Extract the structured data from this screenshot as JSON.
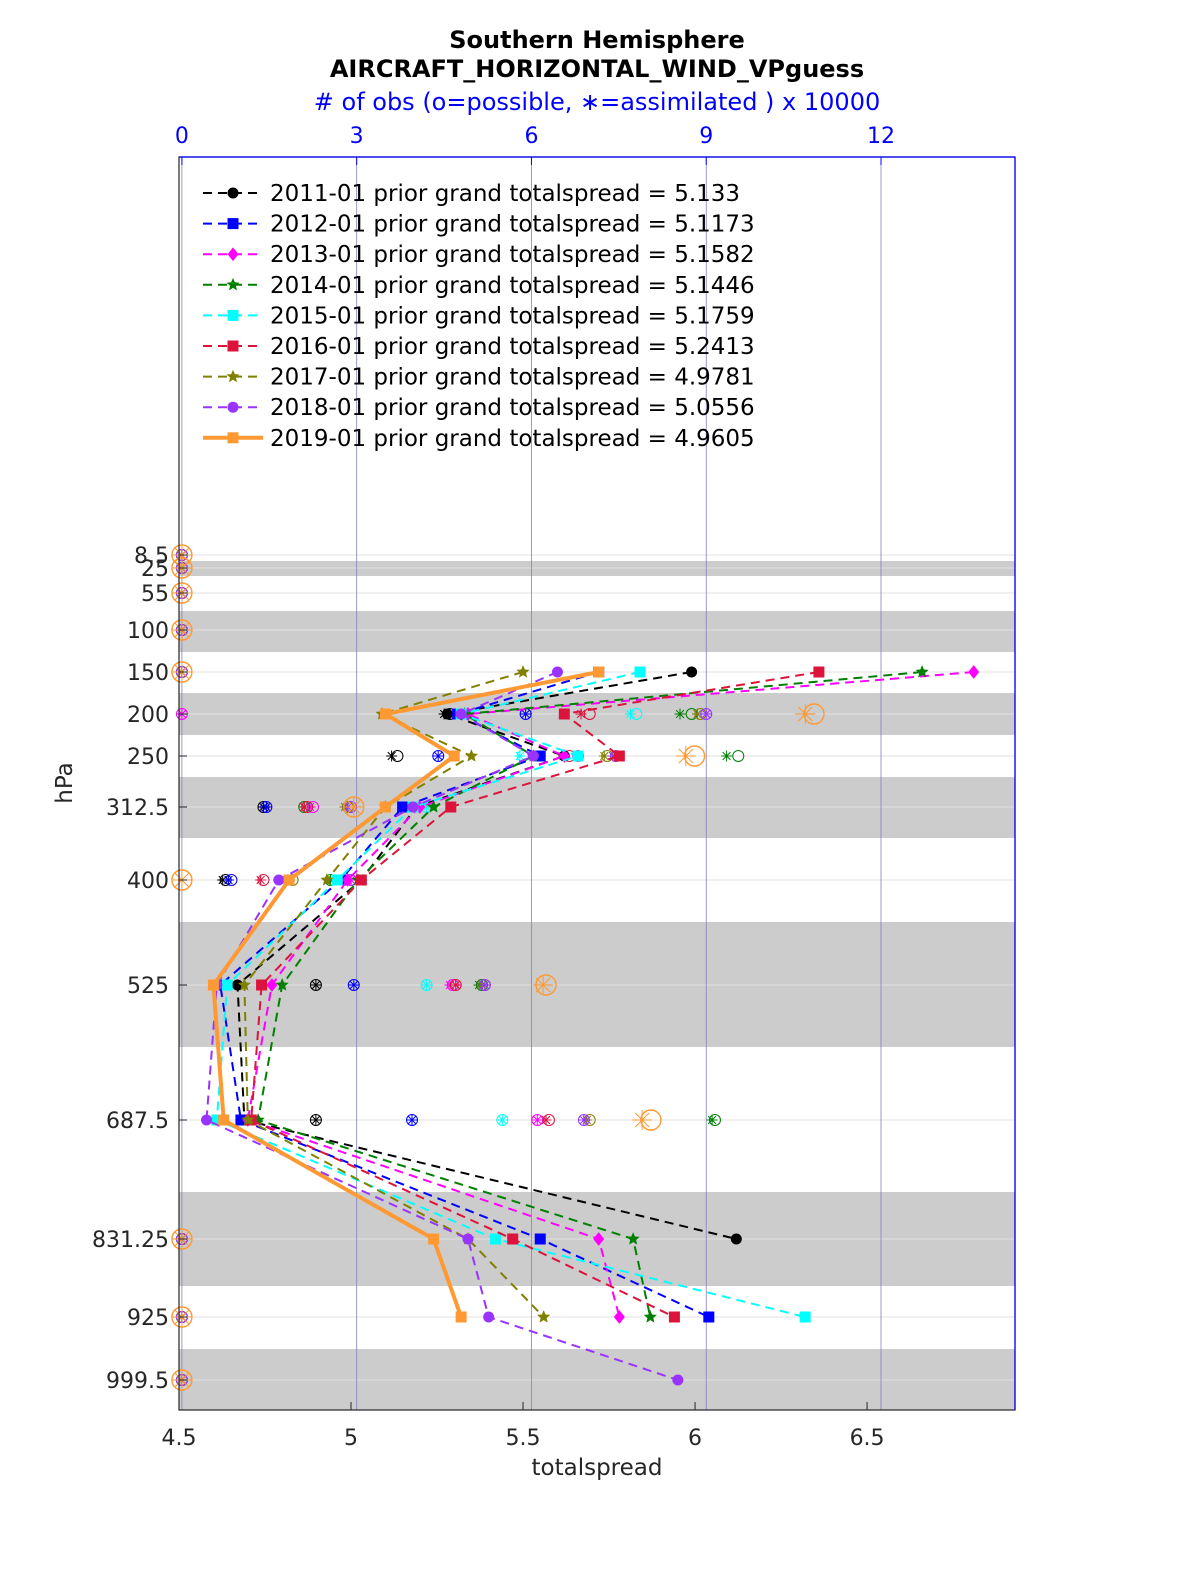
{
  "chart_data": {
    "type": "line",
    "title": "Southern Hemisphere",
    "subtitle": "AIRCRAFT_HORIZONTAL_WIND_VPguess",
    "top_axis_label": "# of obs (o=possible, ∗=assimilated ) x 10000",
    "xlabel": "totalspread",
    "ylabel": "hPa",
    "xlim": [
      4.5,
      6.93
    ],
    "x_ticks": [
      "4.5",
      "5",
      "5.5",
      "6",
      "6.5"
    ],
    "top_xlim": [
      -0.05,
      14.3
    ],
    "top_ticks": [
      "0",
      "3",
      "6",
      "9",
      "12"
    ],
    "y_levels": [
      "8.5",
      "25",
      "55",
      "100",
      "150",
      "200",
      "250",
      "312.5",
      "400",
      "525",
      "687.5",
      "831.25",
      "925",
      "999.5"
    ],
    "grid": "on",
    "legend_position": "top-left",
    "series": [
      {
        "name": "2011-01 prior grand totalspread = 5.133",
        "color": "#000000",
        "marker": "circle",
        "width": 2,
        "values": [
          null,
          null,
          null,
          null,
          5.99,
          5.28,
          5.62,
          5.19,
          5.03,
          4.67,
          4.69,
          6.12,
          null,
          null
        ],
        "obs_possible": [
          0,
          0,
          0,
          0,
          0,
          4.6,
          3.7,
          1.4,
          0.75,
          2.3,
          2.3,
          0,
          0,
          0
        ],
        "obs_assim": [
          0,
          0,
          0,
          0,
          0,
          4.5,
          3.6,
          1.4,
          0.7,
          2.3,
          2.3,
          0,
          0,
          0
        ]
      },
      {
        "name": "2012-01 prior grand totalspread = 5.1173",
        "color": "#0000ff",
        "marker": "square",
        "width": 2,
        "values": [
          null,
          null,
          null,
          null,
          5.72,
          5.31,
          5.55,
          5.15,
          4.97,
          4.62,
          4.68,
          5.55,
          6.04,
          null
        ],
        "obs_possible": [
          0,
          0,
          0,
          0,
          0,
          5.9,
          4.4,
          1.45,
          0.85,
          2.95,
          3.95,
          0,
          0,
          0
        ],
        "obs_assim": [
          0,
          0,
          0,
          0,
          0,
          5.9,
          4.4,
          1.45,
          0.8,
          2.95,
          3.95,
          0,
          0,
          0
        ]
      },
      {
        "name": "2013-01 prior grand totalspread = 5.1582",
        "color": "#ff00ff",
        "marker": "diamond",
        "width": 2,
        "values": [
          null,
          null,
          null,
          null,
          6.81,
          5.34,
          5.62,
          5.2,
          4.99,
          4.77,
          4.7,
          5.72,
          5.78,
          null
        ],
        "obs_possible": [
          0,
          0,
          0,
          0,
          0,
          0,
          6.8,
          2.25,
          2.9,
          4.65,
          6.1,
          0,
          0,
          0
        ],
        "obs_assim": [
          0,
          0,
          0,
          0,
          0,
          0,
          6.8,
          2.2,
          2.9,
          4.6,
          6.1,
          0,
          0,
          0
        ]
      },
      {
        "name": "2014-01 prior grand totalspread = 5.1446",
        "color": "#008000",
        "marker": "star",
        "width": 2,
        "values": [
          null,
          null,
          null,
          null,
          6.66,
          5.33,
          5.53,
          5.24,
          5.02,
          4.8,
          4.73,
          5.82,
          5.87,
          null
        ],
        "obs_possible": [
          0,
          0,
          0,
          0,
          0,
          8.75,
          9.55,
          2.1,
          2.55,
          5.15,
          9.15,
          0,
          0,
          0
        ],
        "obs_assim": [
          0,
          0,
          0,
          0,
          0,
          8.55,
          9.35,
          2.1,
          2.55,
          5.1,
          9.1,
          0,
          0,
          0
        ]
      },
      {
        "name": "2015-01 prior grand totalspread = 5.1759",
        "color": "#00ffff",
        "marker": "square",
        "width": 2,
        "values": [
          null,
          null,
          null,
          null,
          5.84,
          5.32,
          5.66,
          5.18,
          4.96,
          4.64,
          4.61,
          5.42,
          6.32,
          null
        ],
        "obs_possible": [
          0,
          0,
          0,
          0,
          0,
          7.8,
          5.85,
          4.2,
          1.9,
          4.2,
          5.5,
          0,
          0,
          0
        ],
        "obs_assim": [
          0,
          0,
          0,
          0,
          0,
          7.7,
          5.8,
          4.2,
          1.8,
          4.2,
          5.5,
          0,
          0,
          0
        ]
      },
      {
        "name": "2016-01 prior grand totalspread = 5.2413",
        "color": "#dc143c",
        "marker": "square",
        "width": 2,
        "values": [
          null,
          null,
          null,
          null,
          6.36,
          5.62,
          5.78,
          5.29,
          5.03,
          4.74,
          4.71,
          5.47,
          5.94,
          null
        ],
        "obs_possible": [
          0,
          0,
          0,
          0,
          0,
          7.0,
          6.65,
          2.15,
          1.4,
          4.7,
          6.3,
          0,
          0,
          0
        ],
        "obs_assim": [
          0,
          0,
          0,
          0,
          0,
          6.85,
          6.55,
          2.1,
          1.35,
          4.7,
          6.25,
          0,
          0,
          0
        ]
      },
      {
        "name": "2017-01 prior grand totalspread = 4.9781",
        "color": "#808000",
        "marker": "star",
        "width": 2,
        "values": [
          null,
          null,
          null,
          null,
          5.5,
          5.09,
          5.35,
          5.1,
          4.93,
          4.69,
          4.7,
          5.34,
          5.56,
          null
        ],
        "obs_possible": [
          0,
          0,
          0,
          0,
          0,
          8.9,
          7.3,
          2.85,
          1.9,
          5.2,
          7.0,
          0,
          0,
          0
        ],
        "obs_assim": [
          0,
          0,
          0,
          0,
          0,
          8.85,
          7.25,
          2.8,
          1.85,
          5.15,
          6.95,
          0,
          0,
          0
        ]
      },
      {
        "name": "2018-01 prior grand totalspread = 5.0556",
        "color": "#9933ff",
        "marker": "circle",
        "width": 2,
        "values": [
          null,
          null,
          null,
          null,
          5.6,
          5.32,
          5.53,
          5.18,
          4.79,
          4.61,
          4.58,
          5.34,
          5.4,
          5.95
        ],
        "obs_possible": [
          0,
          0,
          0,
          0,
          0,
          9.0,
          7.45,
          2.9,
          2.9,
          5.2,
          6.9,
          0,
          0,
          0
        ],
        "obs_assim": [
          0,
          0,
          0,
          0,
          0,
          9.0,
          7.4,
          2.85,
          2.85,
          5.2,
          6.9,
          0,
          0,
          0
        ]
      },
      {
        "name": "2019-01 prior grand totalspread = 4.9605",
        "color": "#ff9933",
        "marker": "square",
        "width": 4,
        "values": [
          null,
          null,
          null,
          null,
          5.72,
          5.1,
          5.3,
          5.1,
          4.82,
          4.6,
          4.63,
          5.24,
          5.32,
          null
        ],
        "obs_possible": [
          0,
          0,
          0,
          0,
          0,
          10.85,
          8.8,
          2.95,
          0,
          6.25,
          8.05,
          0,
          0,
          0
        ],
        "obs_assim": [
          0,
          0,
          0,
          0,
          0,
          10.7,
          8.65,
          2.95,
          0,
          6.2,
          7.9,
          0,
          0,
          0
        ]
      }
    ]
  }
}
